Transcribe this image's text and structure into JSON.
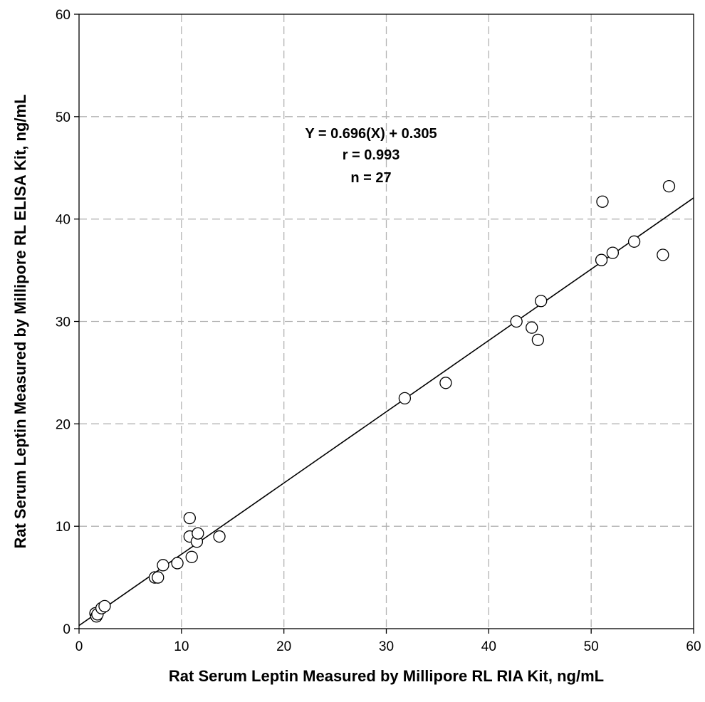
{
  "chart_data": {
    "type": "scatter",
    "xlabel": "Rat Serum Leptin Measured by Millipore RL RIA Kit, ng/mL",
    "ylabel": "Rat Serum Leptin Measured by Millipore RL ELISA Kit, ng/mL",
    "xlim": [
      0,
      60
    ],
    "ylim": [
      0,
      60
    ],
    "xticks": [
      "0",
      "10",
      "20",
      "30",
      "40",
      "50",
      "60"
    ],
    "yticks": [
      "0",
      "10",
      "20",
      "30",
      "40",
      "50",
      "60"
    ],
    "grid": true,
    "annotation": [
      "Y = 0.696(X) + 0.305",
      "r = 0.993",
      "n = 27"
    ],
    "fit": {
      "slope": 0.696,
      "intercept": 0.305
    },
    "points": [
      {
        "x": 1.6,
        "y": 1.5
      },
      {
        "x": 1.7,
        "y": 1.2
      },
      {
        "x": 1.8,
        "y": 1.4
      },
      {
        "x": 2.2,
        "y": 2.0
      },
      {
        "x": 2.5,
        "y": 2.2
      },
      {
        "x": 7.4,
        "y": 5.0
      },
      {
        "x": 7.7,
        "y": 5.0
      },
      {
        "x": 8.2,
        "y": 6.2
      },
      {
        "x": 9.6,
        "y": 6.4
      },
      {
        "x": 10.8,
        "y": 10.8
      },
      {
        "x": 10.8,
        "y": 9.0
      },
      {
        "x": 11.0,
        "y": 7.0
      },
      {
        "x": 11.5,
        "y": 8.5
      },
      {
        "x": 11.6,
        "y": 9.3
      },
      {
        "x": 13.7,
        "y": 9.0
      },
      {
        "x": 31.8,
        "y": 22.5
      },
      {
        "x": 35.8,
        "y": 24.0
      },
      {
        "x": 42.7,
        "y": 30.0
      },
      {
        "x": 44.2,
        "y": 29.4
      },
      {
        "x": 44.8,
        "y": 28.2
      },
      {
        "x": 45.1,
        "y": 32.0
      },
      {
        "x": 51.0,
        "y": 36.0
      },
      {
        "x": 51.1,
        "y": 41.7
      },
      {
        "x": 52.1,
        "y": 36.7
      },
      {
        "x": 54.2,
        "y": 37.8
      },
      {
        "x": 57.0,
        "y": 36.5
      },
      {
        "x": 57.6,
        "y": 43.2
      }
    ]
  }
}
